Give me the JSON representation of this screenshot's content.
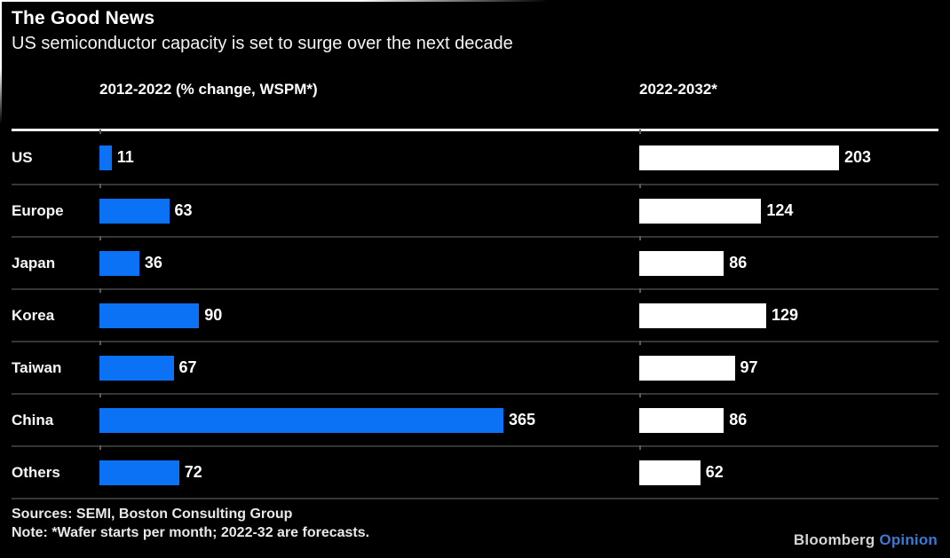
{
  "header": {
    "title": "The Good News",
    "subtitle": "US semiconductor capacity is set to surge over the next decade"
  },
  "columns": {
    "left": "2012-2022 (% change, WSPM*)",
    "right": "2022-2032*"
  },
  "chart_data": {
    "type": "bar",
    "orientation": "horizontal",
    "title": "The Good News",
    "subtitle": "US semiconductor capacity is set to surge over the next decade",
    "categories": [
      "US",
      "Europe",
      "Japan",
      "Korea",
      "Taiwan",
      "China",
      "Others"
    ],
    "series": [
      {
        "name": "2012-2022 (% change, WSPM*)",
        "color": "#0b72f5",
        "values": [
          11,
          63,
          36,
          90,
          67,
          365,
          72
        ],
        "xlim": [
          0,
          365
        ]
      },
      {
        "name": "2022-2032*",
        "color": "#ffffff",
        "values": [
          203,
          124,
          86,
          129,
          97,
          86,
          62
        ],
        "xlim": [
          0,
          203
        ]
      }
    ],
    "value_labels": true,
    "legend_position": "column-headers",
    "grid": "row-separators"
  },
  "footer": {
    "sources": "Sources: SEMI, Boston Consulting Group",
    "note": "Note: *Wafer starts per month; 2022-32 are forecasts.",
    "brand": "Bloomberg",
    "brand_suffix": "Opinion"
  },
  "colors": {
    "background": "#000000",
    "bar_blue": "#0b72f5",
    "bar_white": "#ffffff",
    "text": "#ffffff",
    "separator": "#363636",
    "header_rule": "#f2f2f2",
    "brand_gray": "#d4d4d4",
    "opinion_blue": "#3a79d8"
  }
}
